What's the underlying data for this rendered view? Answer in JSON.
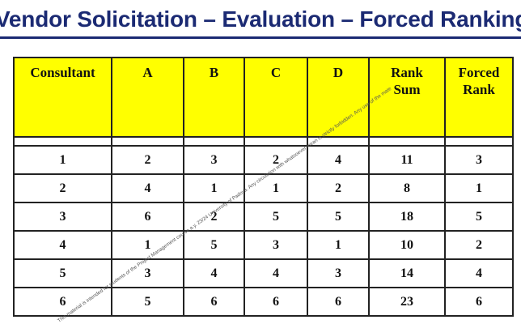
{
  "title": "Vendor Solicitation – Evaluation – Forced Ranking",
  "table": {
    "headers": [
      [
        "Consultant"
      ],
      [
        "A"
      ],
      [
        "B"
      ],
      [
        "C"
      ],
      [
        "D"
      ],
      [
        "Rank",
        "Sum"
      ],
      [
        "Forced",
        "Rank"
      ]
    ],
    "rows": [
      [
        "1",
        "2",
        "3",
        "2",
        "4",
        "11",
        "3"
      ],
      [
        "2",
        "4",
        "1",
        "1",
        "2",
        "8",
        "1"
      ],
      [
        "3",
        "6",
        "2",
        "5",
        "5",
        "18",
        "5"
      ],
      [
        "4",
        "1",
        "5",
        "3",
        "1",
        "10",
        "2"
      ],
      [
        "5",
        "3",
        "4",
        "4",
        "3",
        "14",
        "4"
      ],
      [
        "6",
        "5",
        "6",
        "6",
        "6",
        "23",
        "6"
      ]
    ],
    "colors": {
      "header_bg": "#ffff00",
      "title_color": "#1b2a73"
    }
  },
  "watermark": "This material is intended for students of the Project Management course a.y. 23/24 University of Padova. Any circulation with whatsoever mean is strictly forbidden. Any use of the mate"
}
